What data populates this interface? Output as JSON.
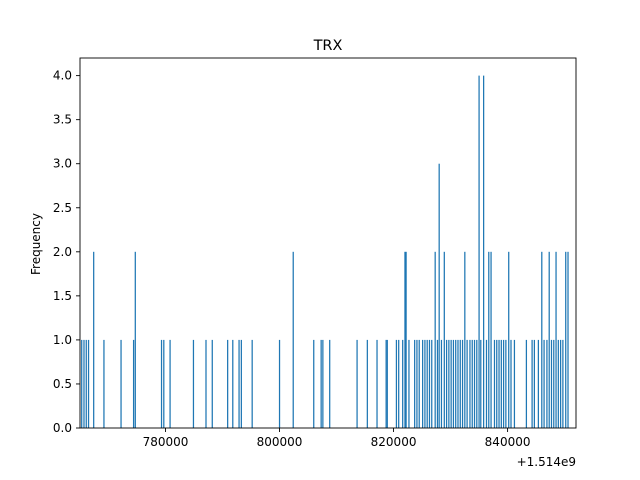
{
  "chart_data": {
    "type": "bar",
    "title": "TRX",
    "xlabel": "",
    "ylabel": "Frequency",
    "axis_offset_label": "+1.514e9",
    "xlim": [
      765000,
      852000
    ],
    "ylim": [
      0,
      4.2
    ],
    "x_ticks": [
      780000,
      800000,
      820000,
      840000
    ],
    "x_tick_labels": [
      "780000",
      "800000",
      "820000",
      "840000"
    ],
    "y_ticks": [
      0,
      0.5,
      1,
      1.5,
      2,
      2.5,
      3,
      3.5,
      4
    ],
    "y_tick_labels": [
      "0.0",
      "0.5",
      "1.0",
      "1.5",
      "2.0",
      "2.5",
      "3.0",
      "3.5",
      "4.0"
    ],
    "bar_color": "#1f77b4",
    "grid": false,
    "bin_width": 220,
    "series": [
      {
        "x": [
          765300,
          765700,
          766100,
          766500,
          767400,
          769200,
          772200,
          774400,
          774700,
          779300,
          779700,
          780800,
          784900,
          787100,
          788200,
          790900,
          791800,
          792900,
          793300,
          795200,
          800000,
          802400,
          806000,
          807300,
          807600,
          808800,
          813600,
          815400,
          817100,
          818700,
          818900,
          820500,
          820900,
          821600,
          822000,
          822200,
          822700,
          823700,
          824100,
          824500,
          825100,
          825500,
          825900,
          826300,
          826700,
          827300,
          827700,
          828000,
          828400,
          828900,
          829300,
          829700,
          830100,
          830500,
          830900,
          831300,
          831700,
          832100,
          832500,
          832900,
          833400,
          833800,
          834200,
          834600,
          835000,
          835300,
          835800,
          836300,
          836700,
          837100,
          837700,
          838100,
          838500,
          838900,
          839300,
          839700,
          840200,
          840600,
          841200,
          843300,
          844300,
          844700,
          845400,
          846000,
          846400,
          846900,
          847300,
          847700,
          848100,
          848500,
          848900,
          849300,
          849700,
          850200,
          850600
        ],
        "values": [
          1,
          1,
          1,
          1,
          2,
          1,
          1,
          1,
          2,
          1,
          1,
          1,
          1,
          1,
          1,
          1,
          1,
          1,
          1,
          1,
          1,
          2,
          1,
          1,
          1,
          1,
          1,
          1,
          1,
          1,
          1,
          1,
          1,
          1,
          2,
          2,
          1,
          1,
          1,
          1,
          1,
          1,
          1,
          1,
          1,
          2,
          1,
          3,
          1,
          2,
          1,
          1,
          1,
          1,
          1,
          1,
          1,
          1,
          2,
          1,
          1,
          1,
          1,
          1,
          4,
          1,
          4,
          1,
          2,
          2,
          1,
          1,
          1,
          1,
          1,
          1,
          2,
          1,
          1,
          1,
          1,
          1,
          1,
          2,
          1,
          1,
          2,
          1,
          1,
          2,
          1,
          1,
          1,
          2,
          2
        ]
      }
    ]
  }
}
